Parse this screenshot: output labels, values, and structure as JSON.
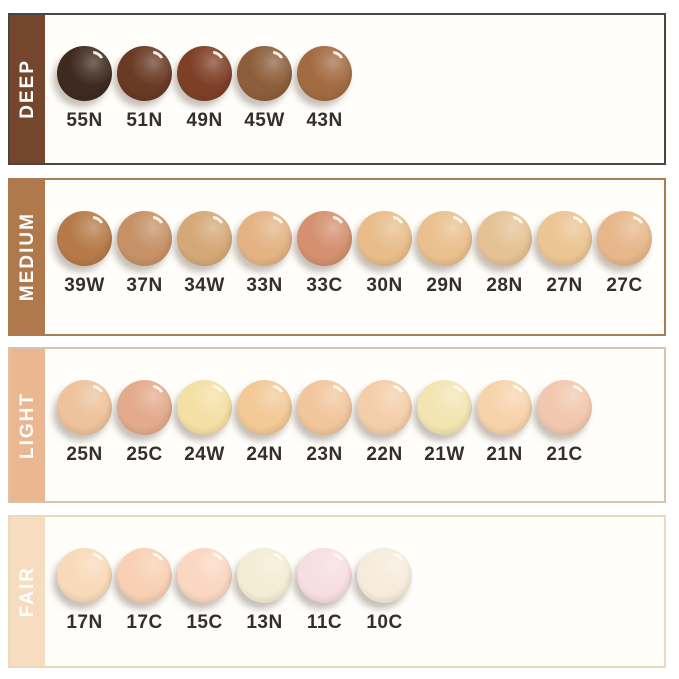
{
  "rows": [
    {
      "name": "DEEP",
      "sidebar_color": "#74462B",
      "border_color": "#4A4540",
      "swatches": [
        {
          "label": "55N",
          "color": "#3F2A1F"
        },
        {
          "label": "51N",
          "color": "#693A24"
        },
        {
          "label": "49N",
          "color": "#7E3F27"
        },
        {
          "label": "45W",
          "color": "#8D5E3B"
        },
        {
          "label": "43N",
          "color": "#A36B42"
        }
      ]
    },
    {
      "name": "MEDIUM",
      "sidebar_color": "#B0794C",
      "border_color": "#A97C52",
      "swatches": [
        {
          "label": "39W",
          "color": "#B67A48"
        },
        {
          "label": "37N",
          "color": "#C69166"
        },
        {
          "label": "34W",
          "color": "#D5A877"
        },
        {
          "label": "33N",
          "color": "#E3B384"
        },
        {
          "label": "33C",
          "color": "#D49070"
        },
        {
          "label": "30N",
          "color": "#E8BD8A"
        },
        {
          "label": "29N",
          "color": "#EAC08E"
        },
        {
          "label": "28N",
          "color": "#E5C295"
        },
        {
          "label": "27N",
          "color": "#EBC593"
        },
        {
          "label": "27C",
          "color": "#E6B78A"
        }
      ]
    },
    {
      "name": "LIGHT",
      "sidebar_color": "#EAB791",
      "border_color": "#D9C3AC",
      "swatches": [
        {
          "label": "25N",
          "color": "#EDC29C"
        },
        {
          "label": "25C",
          "color": "#E3AA8C"
        },
        {
          "label": "24W",
          "color": "#F4E0A4"
        },
        {
          "label": "24N",
          "color": "#F2C997"
        },
        {
          "label": "23N",
          "color": "#F1C69D"
        },
        {
          "label": "22N",
          "color": "#F4CEA9"
        },
        {
          "label": "21W",
          "color": "#F2E5B3"
        },
        {
          "label": "21N",
          "color": "#F7D3AC"
        },
        {
          "label": "21C",
          "color": "#F1C8AE"
        }
      ]
    },
    {
      "name": "FAIR",
      "sidebar_color": "#F8DCC0",
      "border_color": "#E9D9C0",
      "swatches": [
        {
          "label": "17N",
          "color": "#F8DAB9"
        },
        {
          "label": "17C",
          "color": "#F9D0B3"
        },
        {
          "label": "15C",
          "color": "#FAD7C1"
        },
        {
          "label": "13N",
          "color": "#F4EDD5"
        },
        {
          "label": "11C",
          "color": "#F7DEE3"
        },
        {
          "label": "10C",
          "color": "#F6ECDC"
        }
      ]
    }
  ]
}
